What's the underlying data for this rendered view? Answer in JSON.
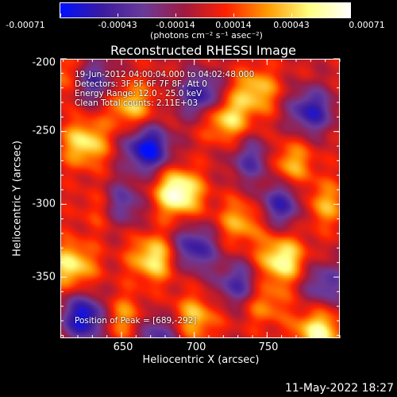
{
  "colorbar": {
    "ticks": [
      "-0.00071",
      "-0.00043",
      "-0.00014",
      "0.00014",
      "0.00043",
      "0.00071"
    ],
    "unit": "(photons cm⁻² s⁻¹ asec⁻²)",
    "colors": [
      "#0010ff",
      "#3a1aa0",
      "#6a3a9a",
      "#a01a40",
      "#ff2000",
      "#ff9a00",
      "#ffff80",
      "#ffffff"
    ]
  },
  "title": "Reconstructed RHESSI Image",
  "info": {
    "line1": "19-Jun-2012 04:00:04.000 to 04:02:48.000",
    "line2": "Detectors: 3F 5F 6F 7F 8F, Att 0",
    "line3": "Energy Range: 12.0 - 25.0 keV",
    "line4": "Clean    Total counts: 2.11E+03",
    "peak": "Position of Peak = [689,-292]"
  },
  "axes": {
    "xlabel": "Heliocentric X (arcsec)",
    "ylabel": "Heliocentric Y (arcsec)",
    "xticks": [
      "650",
      "700",
      "750"
    ],
    "yticks": [
      "-200",
      "-250",
      "-300",
      "-350"
    ]
  },
  "datestamp": "11-May-2022 18:27",
  "chart_data": {
    "type": "heatmap",
    "title": "Reconstructed RHESSI Image",
    "xlabel": "Heliocentric X (arcsec)",
    "ylabel": "Heliocentric Y (arcsec)",
    "xlim": [
      608,
      800
    ],
    "ylim": [
      -392,
      -200
    ],
    "color_range": [
      -0.00071,
      0.00071
    ],
    "peak": {
      "x": 689,
      "y": -292
    },
    "bright_spots": [
      {
        "x": 689,
        "y": -292,
        "v": 0.00071
      },
      {
        "x": 625,
        "y": -258,
        "v": 0.0005
      },
      {
        "x": 616,
        "y": -342,
        "v": 0.0005
      },
      {
        "x": 672,
        "y": -337,
        "v": 0.00052
      },
      {
        "x": 760,
        "y": -338,
        "v": 0.00058
      },
      {
        "x": 785,
        "y": -388,
        "v": 0.00055
      },
      {
        "x": 722,
        "y": -241,
        "v": 0.00048
      },
      {
        "x": 742,
        "y": -222,
        "v": 0.00042
      },
      {
        "x": 700,
        "y": -378,
        "v": 0.0004
      },
      {
        "x": 656,
        "y": -232,
        "v": 0.00042
      },
      {
        "x": 766,
        "y": -272,
        "v": 0.00038
      },
      {
        "x": 640,
        "y": -302,
        "v": 0.0004
      },
      {
        "x": 732,
        "y": -312,
        "v": 0.00036
      },
      {
        "x": 650,
        "y": -378,
        "v": 0.00034
      },
      {
        "x": 610,
        "y": -212,
        "v": 0.0003
      },
      {
        "x": 790,
        "y": -300,
        "v": 0.00034
      },
      {
        "x": 748,
        "y": -368,
        "v": 0.0003
      }
    ],
    "dark_spots": [
      {
        "x": 668,
        "y": -262,
        "v": -0.00071
      },
      {
        "x": 625,
        "y": -378,
        "v": -0.0007
      },
      {
        "x": 648,
        "y": -300,
        "v": -0.0006
      },
      {
        "x": 705,
        "y": -225,
        "v": -0.00055
      },
      {
        "x": 780,
        "y": -236,
        "v": -0.00055
      },
      {
        "x": 760,
        "y": -300,
        "v": -0.0005
      },
      {
        "x": 700,
        "y": -330,
        "v": -0.00052
      },
      {
        "x": 630,
        "y": -215,
        "v": -0.00045
      },
      {
        "x": 730,
        "y": -355,
        "v": -0.00045
      },
      {
        "x": 790,
        "y": -355,
        "v": -0.0004
      },
      {
        "x": 675,
        "y": -390,
        "v": -0.00042
      },
      {
        "x": 740,
        "y": -270,
        "v": -0.0004
      }
    ]
  }
}
